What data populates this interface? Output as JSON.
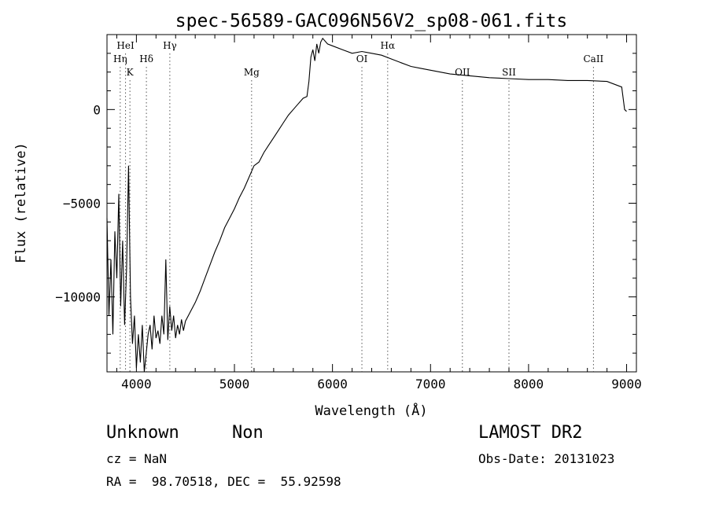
{
  "chart_data": {
    "type": "line",
    "title": "spec-56589-GAC096N56V2_sp08-061.fits",
    "xlabel": "Wavelength (Å)",
    "ylabel": "Flux (relative)",
    "xlim": [
      3700,
      9100
    ],
    "ylim": [
      -14000,
      4000
    ],
    "x_ticks": [
      4000,
      5000,
      6000,
      7000,
      8000,
      9000
    ],
    "y_ticks": [
      0,
      -5000,
      -10000
    ],
    "y_tick_labels": [
      "0",
      "−5000",
      "−10000"
    ],
    "grid": false,
    "series": [
      {
        "x": [
          3700,
          3720,
          3740,
          3760,
          3780,
          3800,
          3820,
          3840,
          3860,
          3880,
          3900,
          3920,
          3940,
          3960,
          3980,
          4000,
          4020,
          4040,
          4060,
          4080,
          4100,
          4120,
          4140,
          4160,
          4180,
          4200,
          4220,
          4240,
          4260,
          4280,
          4300,
          4320,
          4340,
          4360,
          4380,
          4400,
          4420,
          4440,
          4460,
          4480,
          4500,
          4550,
          4600,
          4650,
          4700,
          4750,
          4800,
          4850,
          4900,
          4950,
          5000,
          5050,
          5100,
          5150,
          5200,
          5250,
          5300,
          5350,
          5400,
          5450,
          5500,
          5550,
          5600,
          5650,
          5700,
          5740,
          5760,
          5780,
          5800,
          5820,
          5840,
          5860,
          5880,
          5900,
          5950,
          6000,
          6100,
          6200,
          6300,
          6400,
          6500,
          6600,
          6700,
          6800,
          6900,
          7000,
          7200,
          7400,
          7600,
          7800,
          8000,
          8200,
          8400,
          8600,
          8800,
          8950,
          8980,
          9000
        ],
        "y": [
          -5800,
          -11000,
          -8000,
          -12000,
          -6500,
          -9000,
          -4500,
          -10500,
          -7000,
          -11500,
          -8500,
          -3000,
          -10000,
          -12500,
          -11000,
          -13800,
          -12000,
          -13500,
          -11500,
          -14000,
          -13000,
          -12000,
          -11500,
          -12800,
          -11000,
          -12200,
          -11800,
          -12500,
          -11000,
          -12000,
          -8000,
          -12300,
          -10500,
          -11800,
          -11000,
          -12200,
          -11500,
          -12000,
          -11200,
          -11800,
          -11300,
          -10800,
          -10300,
          -9700,
          -9000,
          -8300,
          -7600,
          -7000,
          -6300,
          -5800,
          -5300,
          -4700,
          -4200,
          -3600,
          -3000,
          -2800,
          -2300,
          -1900,
          -1500,
          -1100,
          -700,
          -300,
          0,
          300,
          600,
          700,
          1500,
          2800,
          3200,
          2600,
          3500,
          3000,
          3600,
          3800,
          3500,
          3400,
          3200,
          3000,
          3100,
          3000,
          2900,
          2700,
          2500,
          2300,
          2200,
          2100,
          1900,
          1800,
          1700,
          1650,
          1600,
          1600,
          1550,
          1550,
          1500,
          1200,
          0,
          -100
        ]
      }
    ],
    "lines": [
      {
        "label": "Hη",
        "x": 3835,
        "row": 2
      },
      {
        "label": "HeI",
        "x": 3889,
        "row": 1
      },
      {
        "label": "K",
        "x": 3934,
        "row": 3
      },
      {
        "label": "Hδ",
        "x": 4102,
        "row": 2
      },
      {
        "label": "Hγ",
        "x": 4341,
        "row": 1
      },
      {
        "label": "Mg",
        "x": 5175,
        "row": 3
      },
      {
        "label": "OI",
        "x": 6300,
        "row": 2
      },
      {
        "label": "Hα",
        "x": 6563,
        "row": 1
      },
      {
        "label": "OII",
        "x": 7325,
        "row": 3
      },
      {
        "label": "SII",
        "x": 7800,
        "row": 3
      },
      {
        "label": "CaII",
        "x": 8662,
        "row": 2
      }
    ]
  },
  "info": {
    "class": "Unknown",
    "subclass": "Non",
    "cz": "cz = NaN",
    "radec": "RA =  98.70518, DEC =  55.92598",
    "survey": "LAMOST DR2",
    "obs_date": "Obs-Date: 20131023"
  }
}
